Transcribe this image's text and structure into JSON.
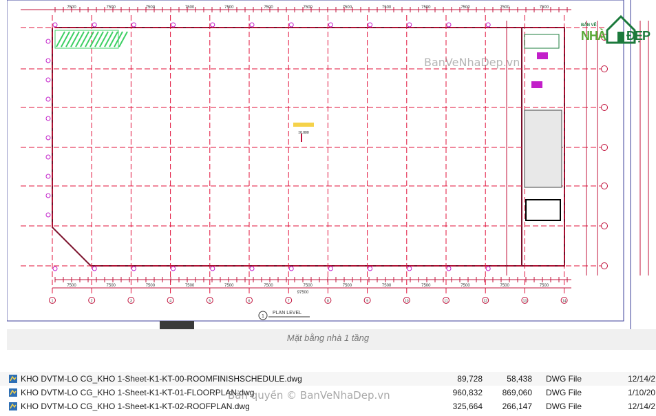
{
  "drawing": {
    "plan_label": "PLAN LEVEL",
    "plan_number": "1",
    "overall_dim": "97500",
    "bay_dims": [
      "7500",
      "7500",
      "7500",
      "7500",
      "7500",
      "7500",
      "7500",
      "7500",
      "7500",
      "7500",
      "7500",
      "7500",
      "7500"
    ],
    "grid_labels": [
      "1",
      "2",
      "3",
      "4",
      "5",
      "6",
      "7",
      "8",
      "9",
      "10",
      "11",
      "12",
      "13",
      "14"
    ],
    "level_marker": "±0.000",
    "colors": {
      "grid": "#e0103a",
      "wall": "#7a0f2a",
      "column": "#c21fc9",
      "hatch": "#3ccf63",
      "dim": "#c0103a"
    }
  },
  "watermark_top": "BanVeNhaDep.vn",
  "logo": {
    "top": "BẢN VẼ",
    "nha": "NHÀ",
    "dep": "ĐẸP"
  },
  "caption": "Mặt bằng nhà 1 tầng",
  "watermark_bottom": "Bản quyền © BanVeNhaDep.vn",
  "files": [
    {
      "name": "KHO DVTM-LO CG_KHO 1-Sheet-K1-KT-00-ROOMFINISHSCHEDULE.dwg",
      "size": "89,728",
      "packed": "58,438",
      "type": "DWG File",
      "date": "12/14/2",
      "icon": "dwg-file-icon"
    },
    {
      "name": "KHO DVTM-LO CG_KHO 1-Sheet-K1-KT-01-FLOORPLAN.dwg",
      "size": "960,832",
      "packed": "869,060",
      "type": "DWG File",
      "date": "1/10/20",
      "icon": "dwg-file-icon"
    },
    {
      "name": "KHO DVTM-LO CG_KHO 1-Sheet-K1-KT-02-ROOFPLAN.dwg",
      "size": "325,664",
      "packed": "266,147",
      "type": "DWG File",
      "date": "12/14/2",
      "icon": "dwg-file-icon"
    }
  ]
}
